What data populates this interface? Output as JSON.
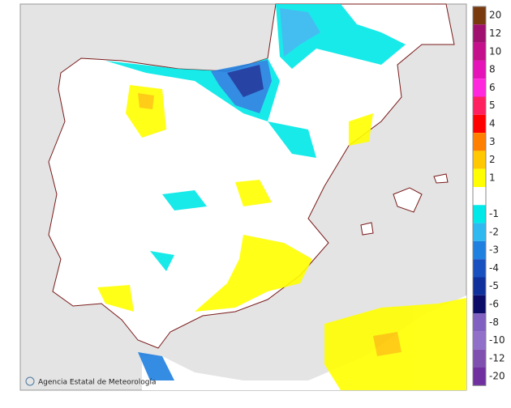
{
  "credit": "Agencia Estatal de Meteorología",
  "legend": [
    {
      "value": 20,
      "color": "#7a3a10"
    },
    {
      "value": 12,
      "color": "#a0106e"
    },
    {
      "value": 10,
      "color": "#c4108a"
    },
    {
      "value": 8,
      "color": "#e414b8"
    },
    {
      "value": 6,
      "color": "#ff28dc"
    },
    {
      "value": 5,
      "color": "#ff2060"
    },
    {
      "value": 4,
      "color": "#ff0000"
    },
    {
      "value": 3,
      "color": "#ff8000"
    },
    {
      "value": 2,
      "color": "#ffc800"
    },
    {
      "value": 1,
      "color": "#ffff00"
    },
    {
      "value": -1,
      "color": "#00e8e8"
    },
    {
      "value": -2,
      "color": "#30b8f0"
    },
    {
      "value": -3,
      "color": "#2080e0"
    },
    {
      "value": -4,
      "color": "#1850c0"
    },
    {
      "value": -5,
      "color": "#10309c"
    },
    {
      "value": -6,
      "color": "#0c0c68"
    },
    {
      "value": -8,
      "color": "#8060c0"
    },
    {
      "value": -10,
      "color": "#9070c8"
    },
    {
      "value": -12,
      "color": "#8050b0"
    },
    {
      "value": -20,
      "color": "#7030a0"
    }
  ]
}
